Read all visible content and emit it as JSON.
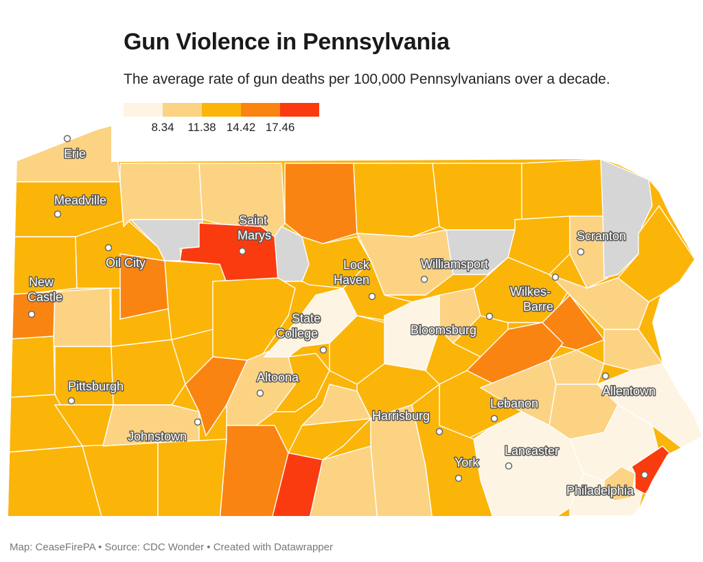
{
  "title": "Gun Violence in Pennsylvania",
  "subtitle": "The average rate of gun deaths per 100,000 Pennsylvanians over a decade.",
  "legend": {
    "colors": [
      "#fdf4e3",
      "#fcd383",
      "#fbb509",
      "#f98412",
      "#fa3b10"
    ],
    "ticks": [
      "8.34",
      "11.38",
      "14.42",
      "17.46"
    ]
  },
  "no_data_color": "#d6d6d6",
  "cities": [
    {
      "name_lines": [
        "Erie"
      ]
    },
    {
      "name_lines": [
        "Meadville"
      ]
    },
    {
      "name_lines": [
        "Oil City"
      ]
    },
    {
      "name_lines": [
        "New",
        "Castle"
      ]
    },
    {
      "name_lines": [
        "Saint",
        "Marys"
      ]
    },
    {
      "name_lines": [
        "Lock",
        "Haven"
      ]
    },
    {
      "name_lines": [
        "Williamsport"
      ]
    },
    {
      "name_lines": [
        "Scranton"
      ]
    },
    {
      "name_lines": [
        "Wilkes-",
        "Barre"
      ]
    },
    {
      "name_lines": [
        "State",
        "College"
      ]
    },
    {
      "name_lines": [
        "Bloomsburg"
      ]
    },
    {
      "name_lines": [
        "Pittsburgh"
      ]
    },
    {
      "name_lines": [
        "Altoona"
      ]
    },
    {
      "name_lines": [
        "Johnstown"
      ]
    },
    {
      "name_lines": [
        "Harrisburg"
      ]
    },
    {
      "name_lines": [
        "Lebanon"
      ]
    },
    {
      "name_lines": [
        "Allentown"
      ]
    },
    {
      "name_lines": [
        "Lancaster"
      ]
    },
    {
      "name_lines": [
        "York"
      ]
    },
    {
      "name_lines": [
        "Philadelphia"
      ]
    }
  ],
  "footer": "Map: CeaseFirePA • Source: CDC Wonder • Created with Datawrapper"
}
